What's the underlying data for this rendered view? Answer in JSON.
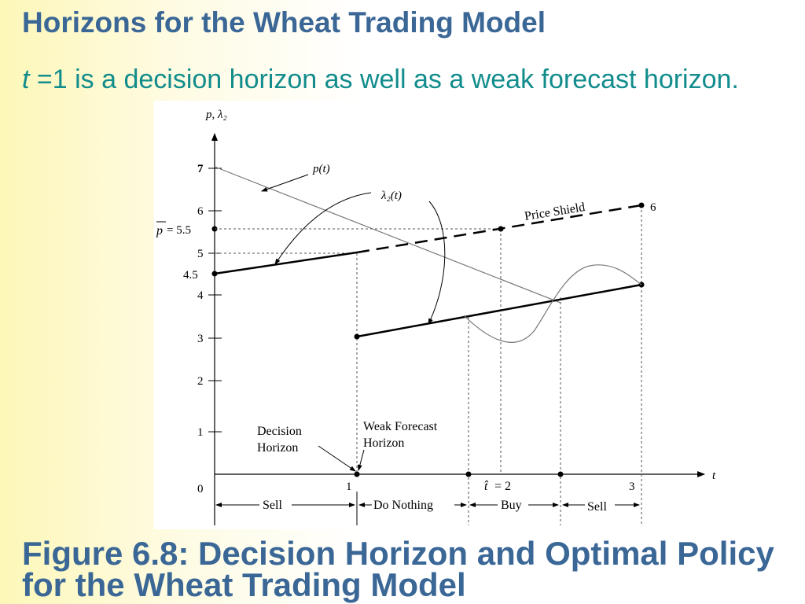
{
  "slide": {
    "title": "Horizons for the Wheat Trading Model",
    "subtitle_var": "t",
    "subtitle_rest": " =1 is a decision horizon as well as a weak forecast horizon.",
    "caption": "Figure 6.8: Decision Horizon and Optimal Policy for the Wheat Trading Model"
  },
  "diagram": {
    "y_axis_label": "p, λ₂",
    "x_axis_label": "t",
    "y_ticks": [
      "7",
      "6",
      "5",
      "4",
      "3",
      "2",
      "1"
    ],
    "y_special": {
      "p_bar": "p",
      "p_bar_value": "= 5.5",
      "four_half": "4.5"
    },
    "x_ticks": {
      "origin": "0",
      "one": "1",
      "t_hat": "t̂",
      "t_hat_value": "= 2",
      "three": "3"
    },
    "curve_labels": {
      "p_t": "p(t)",
      "lambda2_t": "λ₂(t)",
      "price_shield": "Price Shield",
      "six": "6"
    },
    "horizon_labels": {
      "decision": [
        "Decision",
        "Horizon"
      ],
      "weak_forecast": [
        "Weak Forecast",
        "Horizon"
      ]
    },
    "policy_intervals": [
      "Sell",
      "Do Nothing",
      "Buy",
      "Sell"
    ],
    "colors": {
      "lines": "#000000",
      "title": "#3a6796",
      "subtitle": "#128c8c"
    }
  }
}
